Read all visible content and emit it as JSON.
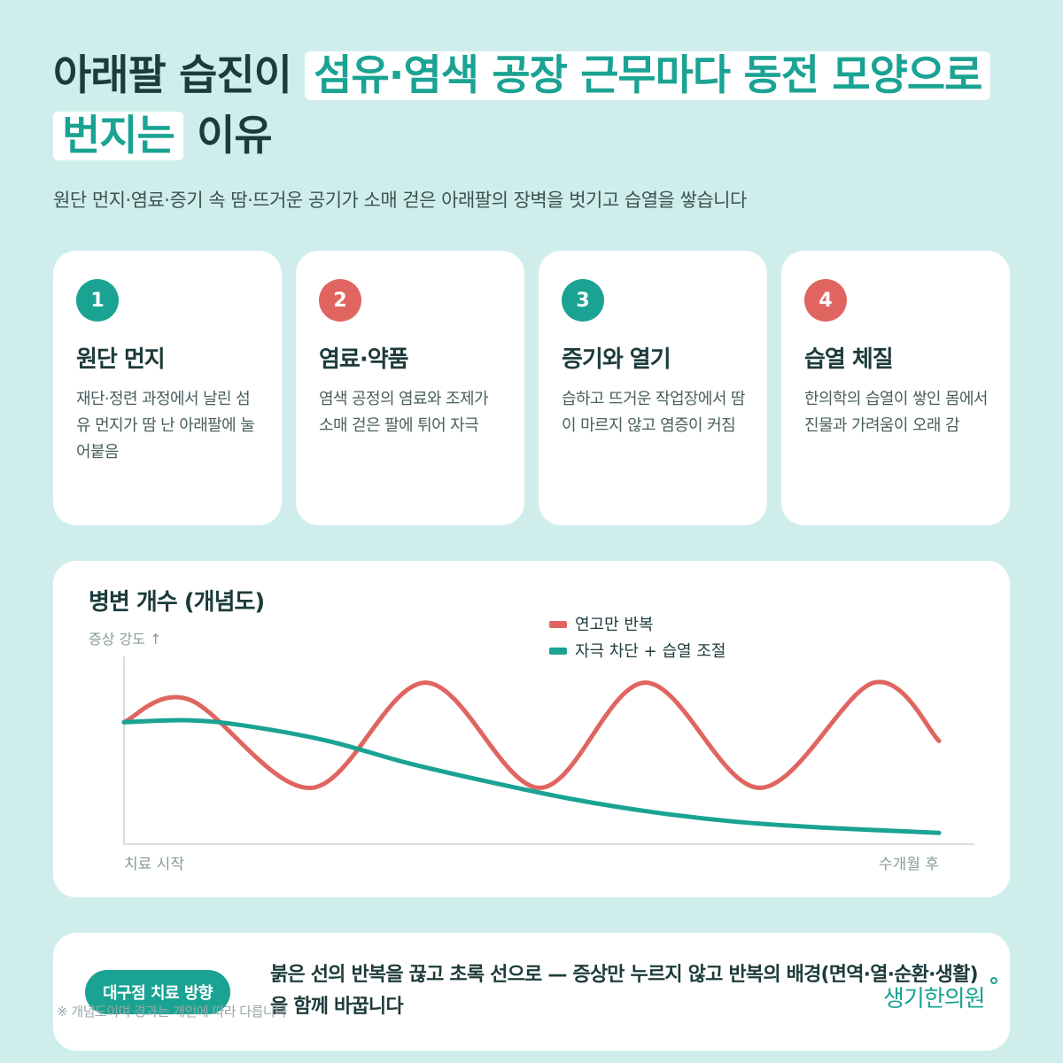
{
  "title": {
    "part1": "아래팔 습진이 ",
    "highlight": "섬유·염색 공장 근무마다 동전 모양으로 번지는",
    "part2": " 이유"
  },
  "subtitle": "원단 먼지·염료·증기 속 땀·뜨거운 공기가 소매 걷은 아래팔의 장벽을 벗기고 습열을 쌓습니다",
  "cards": [
    {
      "num": "1",
      "title": "원단 먼지",
      "desc": "재단·정련 과정에서 날린 섬유 먼지가 땀 난 아래팔에 눌어붙음",
      "color": "teal"
    },
    {
      "num": "2",
      "title": "염료·약품",
      "desc": "염색 공정의 염료와 조제가 소매 걷은 팔에 튀어 자극",
      "color": "red"
    },
    {
      "num": "3",
      "title": "증기와 열기",
      "desc": "습하고 뜨거운 작업장에서 땀이 마르지 않고 염증이 커짐",
      "color": "teal"
    },
    {
      "num": "4",
      "title": "습열 체질",
      "desc": "한의학의 습열이 쌓인 몸에서 진물과 가려움이 오래 감",
      "color": "red"
    }
  ],
  "chart_data": {
    "type": "line",
    "title": "병변 개수 (개념도)",
    "ylabel": "증상 강도 ↑",
    "x_start_label": "치료 시작",
    "x_end_label": "수개월 후",
    "xlim": [
      0,
      100
    ],
    "ylim": [
      0,
      100
    ],
    "grid": false,
    "legend_position": "top-center",
    "series": [
      {
        "name": "연고만 반복",
        "color": "#e06560",
        "x": [
          0,
          8,
          23,
          37,
          51,
          64,
          78,
          92,
          100
        ],
        "y": [
          65,
          77,
          30,
          86,
          30,
          86,
          30,
          86,
          55
        ]
      },
      {
        "name": "자극 차단 + 습열 조절",
        "color": "#1aa393",
        "x": [
          0,
          8,
          15,
          25,
          35,
          45,
          55,
          65,
          75,
          85,
          95,
          100
        ],
        "y": [
          65,
          66,
          63,
          55,
          43,
          33,
          24,
          17,
          12,
          9,
          7,
          6
        ]
      }
    ]
  },
  "bottom": {
    "pill": "대구점 치료 방향",
    "text": "붉은 선의 반복을 끊고 초록 선으로 — 증상만 누르지 않고 반복의 배경(면역·열·순환·생활)을 함께 바꿉니다",
    "footnote": "※ 개념도이며 경과는 개인에 따라 다릅니다",
    "logo": "생기한의원"
  },
  "colors": {
    "teal": "#1aa393",
    "red": "#e06560",
    "background": "#cfeeeb"
  }
}
